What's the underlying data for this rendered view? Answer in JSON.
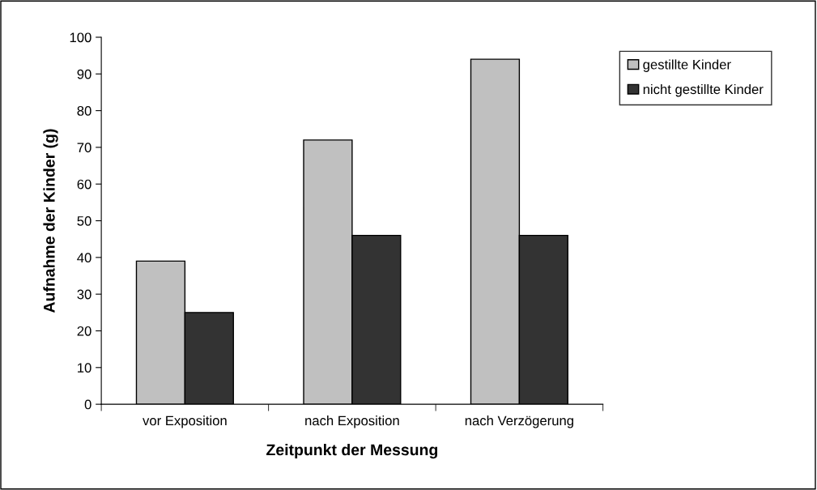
{
  "chart_data": {
    "type": "bar",
    "xlabel": "Zeitpunkt der Messung",
    "ylabel": "Aufnahme der Kinder (g)",
    "categories": [
      "vor Exposition",
      "nach Exposition",
      "nach Verzögerung"
    ],
    "series": [
      {
        "name": "gestillte Kinder",
        "color": "#c0c0c0",
        "values": [
          39,
          72,
          94
        ]
      },
      {
        "name": "nicht gestillte Kinder",
        "color": "#333333",
        "values": [
          25,
          46,
          46
        ]
      }
    ],
    "ylim": [
      0,
      100
    ],
    "yticks": [
      0,
      10,
      20,
      30,
      40,
      50,
      60,
      70,
      80,
      90,
      100
    ],
    "grid": false,
    "legend": "top right"
  }
}
